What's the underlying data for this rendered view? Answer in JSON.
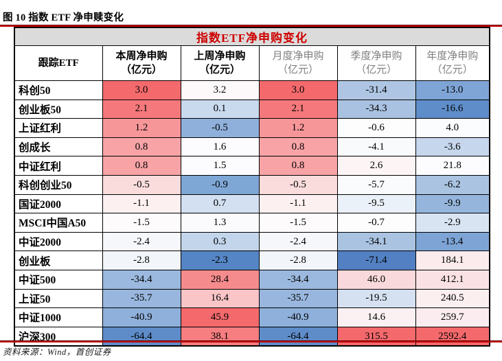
{
  "figure": {
    "caption": "图 10 指数 ETF 净申赎变化",
    "source": "资料来源：Wind，首创证券"
  },
  "colors": {
    "accent_red": "#ce0000",
    "rule_red": "#be0000",
    "title_bg": "#dbdbdb",
    "muted_header": "#7f7f7f",
    "heat_max_red": "#f4696c",
    "heat_mid_white": "#fcfcfe",
    "heat_min_blue": "#5280c2"
  },
  "table": {
    "title": "指数ETF净申购变化",
    "columns": [
      {
        "label": "跟踪ETF",
        "unit": "",
        "muted": false
      },
      {
        "label": "本周净申购",
        "unit": "（亿元）",
        "muted": false
      },
      {
        "label": "上周净申购",
        "unit": "（亿元）",
        "muted": false
      },
      {
        "label": "月度净申购",
        "unit": "（亿元）",
        "muted": true
      },
      {
        "label": "季度净申购",
        "unit": "（亿元）",
        "muted": true
      },
      {
        "label": "年度净申购",
        "unit": "（亿元）",
        "muted": true
      }
    ],
    "rows": [
      {
        "label": "科创50",
        "values": [
          "3.0",
          "3.2",
          "3.0",
          "-31.4",
          "-13.0"
        ],
        "colors": [
          "#f4696c",
          "#fdf9fa",
          "#f4696c",
          "#aec6e3",
          "#7fa5d6"
        ]
      },
      {
        "label": "创业板50",
        "values": [
          "2.1",
          "0.1",
          "2.1",
          "-34.3",
          "-16.6"
        ],
        "colors": [
          "#f5797c",
          "#c9d9ee",
          "#f5797c",
          "#a9c2e1",
          "#5e8dc9"
        ]
      },
      {
        "label": "上证红利",
        "values": [
          "1.2",
          "-0.5",
          "1.2",
          "-0.6",
          "4.0"
        ],
        "colors": [
          "#f79699",
          "#8fb0db",
          "#f79699",
          "#fdfdfe",
          "#fbfcfe"
        ]
      },
      {
        "label": "创成长",
        "values": [
          "0.8",
          "1.6",
          "0.8",
          "-4.1",
          "-3.6"
        ],
        "colors": [
          "#f8a4a7",
          "#fcfbfd",
          "#f8a4a7",
          "#f8fafc",
          "#c6d6ec"
        ]
      },
      {
        "label": "中证红利",
        "values": [
          "0.8",
          "1.5",
          "0.8",
          "2.6",
          "21.8"
        ],
        "colors": [
          "#f8a4a7",
          "#fcfbfd",
          "#f8a4a7",
          "#fdf4f5",
          "#fcfbfd"
        ]
      },
      {
        "label": "科创创业50",
        "values": [
          "-0.5",
          "-0.9",
          "-0.5",
          "-5.7",
          "-6.2"
        ],
        "colors": [
          "#fadcdd",
          "#7fa7d6",
          "#fadcdd",
          "#fafbfd",
          "#a9c3e1"
        ]
      },
      {
        "label": "国证2000",
        "values": [
          "-1.1",
          "0.7",
          "-1.1",
          "-9.5",
          "-9.9"
        ],
        "colors": [
          "#fcf0f1",
          "#d2e0f1",
          "#fcf0f1",
          "#ebf1f8",
          "#95b5dc"
        ]
      },
      {
        "label": "MSCI中国A50",
        "values": [
          "-1.5",
          "1.3",
          "-1.5",
          "-0.7",
          "-2.9"
        ],
        "colors": [
          "#fdfbfc",
          "#fbfbfd",
          "#fdfbfc",
          "#fdfdfe",
          "#d9e4f3"
        ]
      },
      {
        "label": "中证2000",
        "values": [
          "-2.4",
          "0.3",
          "-2.4",
          "-34.1",
          "-13.4"
        ],
        "colors": [
          "#f5f7fb",
          "#c3d5eb",
          "#f5f7fb",
          "#aac3e1",
          "#7da4d5"
        ]
      },
      {
        "label": "创业板",
        "values": [
          "-2.8",
          "-2.3",
          "-2.8",
          "-71.4",
          "184.1"
        ],
        "colors": [
          "#f2f5fa",
          "#5585c4",
          "#f2f5fa",
          "#5280c2",
          "#fbebec"
        ]
      },
      {
        "label": "中证500",
        "values": [
          "-34.4",
          "28.4",
          "-34.4",
          "46.0",
          "412.1"
        ],
        "colors": [
          "#9bb9df",
          "#f68b8e",
          "#9bb9df",
          "#f9d9db",
          "#fae2e4"
        ]
      },
      {
        "label": "上证50",
        "values": [
          "-35.7",
          "16.4",
          "-35.7",
          "-19.5",
          "240.5"
        ],
        "colors": [
          "#99b7de",
          "#fac5c7",
          "#99b7de",
          "#d5e1f1",
          "#fbeff0"
        ]
      },
      {
        "label": "中证1000",
        "values": [
          "-40.9",
          "45.9",
          "-40.9",
          "14.6",
          "259.7"
        ],
        "colors": [
          "#8fb0db",
          "#f4696c",
          "#8fb0db",
          "#fcf1f2",
          "#fbedef"
        ]
      },
      {
        "label": "沪深300",
        "values": [
          "-64.4",
          "38.1",
          "-64.4",
          "315.5",
          "2592.4"
        ],
        "colors": [
          "#5e8cc8",
          "#f67d80",
          "#5e8cc8",
          "#f4696c",
          "#f4696c"
        ]
      }
    ]
  }
}
